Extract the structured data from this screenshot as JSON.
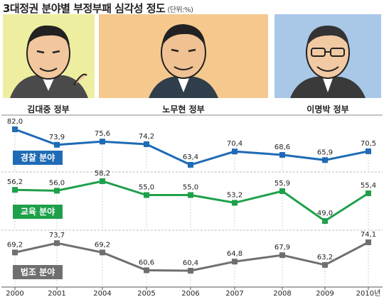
{
  "title": "3대정권 분야별 부정부패 심각성 정도",
  "unit": "(단위:%)",
  "portraits": [
    {
      "label": "김대중 정부",
      "bg": "#eeeea0",
      "face": "#f2c79e"
    },
    {
      "label": "노무현 정부",
      "bg": "#f5c98e",
      "face": "#f0c192"
    },
    {
      "label": "이명박 정부",
      "bg": "#a9c8e8",
      "face": "#f1c9a2"
    }
  ],
  "chart_data": {
    "type": "line",
    "x": [
      "2000",
      "2001",
      "2004",
      "2005",
      "2006",
      "2007",
      "2008",
      "2009",
      "2010년"
    ],
    "series": [
      {
        "name": "경찰 분야",
        "color": "#1f6bb5",
        "values": [
          82.0,
          73.9,
          75.6,
          74.2,
          63.4,
          70.4,
          68.6,
          65.9,
          70.5
        ],
        "labels": [
          "82,0",
          "73,9",
          "75,6",
          "74,2",
          "63,4",
          "70,4",
          "68,6",
          "65,9",
          "70,5"
        ]
      },
      {
        "name": "교육 분야",
        "color": "#1ea04a",
        "values": [
          56.2,
          56.0,
          58.2,
          55.0,
          55.0,
          53.2,
          55.9,
          49.0,
          55.4
        ],
        "labels": [
          "56,2",
          "56,0",
          "58,2",
          "55,0",
          "55,0",
          "53,2",
          "55,9",
          "49,0",
          "55,4"
        ]
      },
      {
        "name": "법조 분야",
        "color": "#6f6f6f",
        "values": [
          69.2,
          73.7,
          69.2,
          60.6,
          60.4,
          64.8,
          67.9,
          63.2,
          74.1
        ],
        "labels": [
          "69,2",
          "73,7",
          "69,2",
          "60,6",
          "60,4",
          "64,8",
          "67,9",
          "63,2",
          "74,1"
        ]
      }
    ]
  }
}
